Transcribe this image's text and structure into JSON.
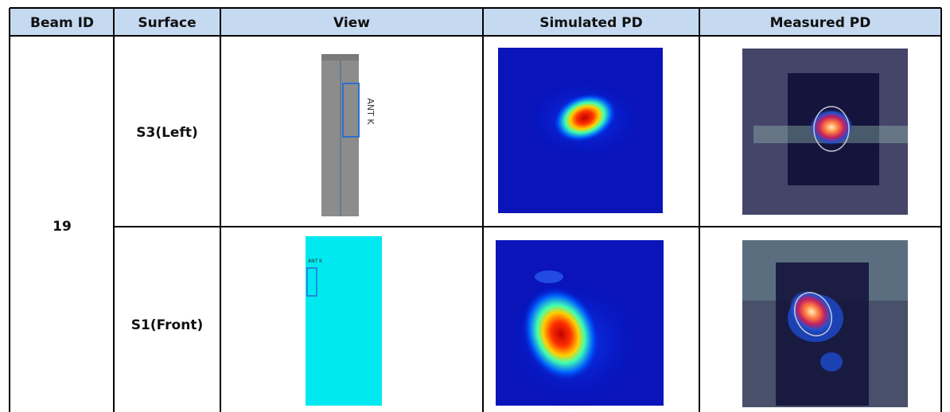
{
  "table": {
    "header": [
      "Beam ID",
      "Surface",
      "View",
      "Simulated PD",
      "Measured PD"
    ],
    "beam_id": "19",
    "rows": [
      {
        "surface": "S3(Left)",
        "view_label": "ANT K"
      },
      {
        "surface": "S1(Front)",
        "view_label": "ANT K"
      }
    ]
  }
}
